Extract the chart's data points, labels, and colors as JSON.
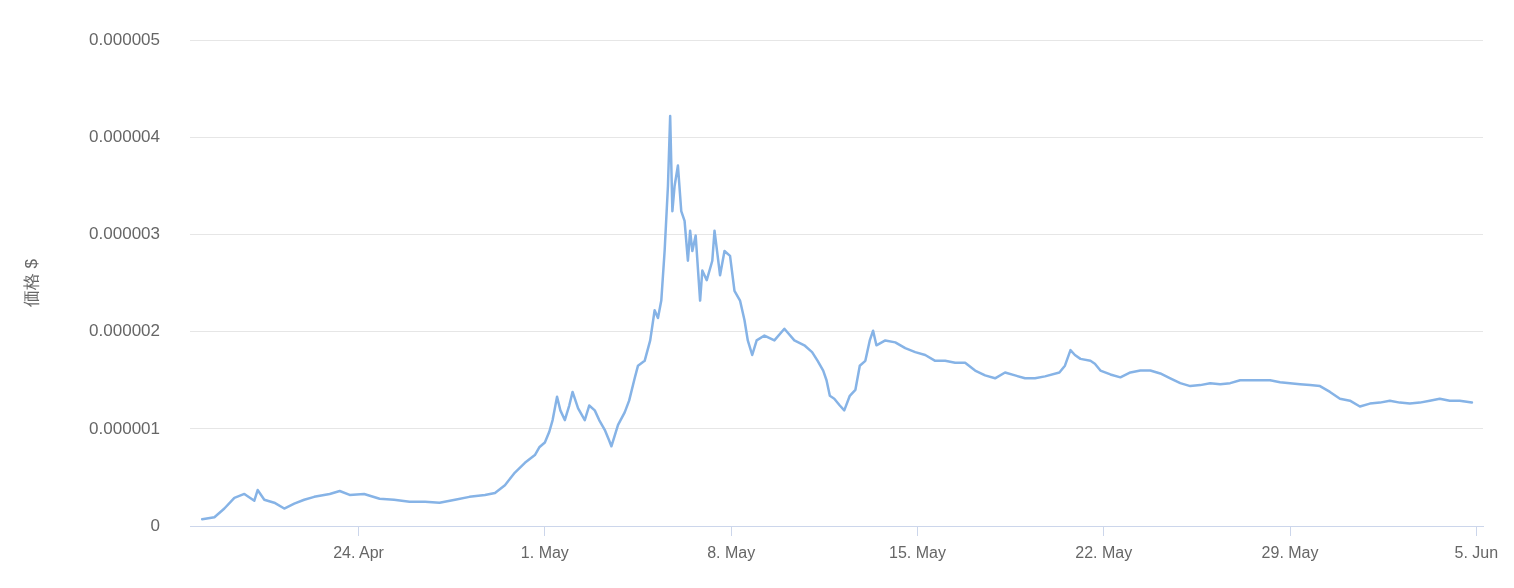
{
  "chart_data": {
    "type": "line",
    "ylabel": "価格 $",
    "legend": false,
    "grid": "y",
    "marker": "none",
    "line_style": "solid",
    "xlim": [
      "--04-17T16:00",
      "--06-05T06:00"
    ],
    "xticks": [
      {
        "value": "--04-24",
        "label": "24. Apr"
      },
      {
        "value": "--05-01",
        "label": "1. May"
      },
      {
        "value": "--05-08",
        "label": "8. May"
      },
      {
        "value": "--05-15",
        "label": "15. May"
      },
      {
        "value": "--05-22",
        "label": "22. May"
      },
      {
        "value": "--05-29",
        "label": "29. May"
      },
      {
        "value": "--06-05",
        "label": "5. Jun"
      }
    ],
    "ylim": [
      0,
      5e-06
    ],
    "yticks": [
      0,
      {
        "value": 1e-06,
        "label": "0.000001"
      },
      {
        "value": 2e-06,
        "label": "0.000002"
      },
      {
        "value": 3e-06,
        "label": "0.000003"
      },
      {
        "value": 4e-06,
        "label": "0.000004"
      },
      {
        "value": 5e-06,
        "label": "0.000005"
      }
    ],
    "series": [
      {
        "color": "#86b3e6",
        "x": [
          "--04-18T03:00",
          "--04-18T14:00",
          "--04-18T23:00",
          "--04-19T08:00",
          "--04-19T17:00",
          "--04-20T02:00",
          "--04-20T05:00",
          "--04-20T11:00",
          "--04-20T20:00",
          "--04-21T05:00",
          "--04-21T14:00",
          "--04-21T23:00",
          "--04-22T08:00",
          "--04-22T22:00",
          "--04-23T07:00",
          "--04-23T16:00",
          "--04-24T05:00",
          "--04-24T19:00",
          "--04-25T08:00",
          "--04-25T22:00",
          "--04-26T12:00",
          "--04-27T01:00",
          "--04-27T15:00",
          "--04-28T04:00",
          "--04-28T18:00",
          "--04-29T03:00",
          "--04-29T12:00",
          "--04-29T21:00",
          "--04-30T06:00",
          "--04-30T15:00",
          "--04-30T19:00",
          "--05-01T00:00",
          "--05-01T04:00",
          "--05-01T07:00",
          "--05-01T11:00",
          "--05-01T14:00",
          "--05-01T18:00",
          "--05-01T22:00",
          "--05-02T01:00",
          "--05-02T06:00",
          "--05-02T12:00",
          "--05-02T16:00",
          "--05-02T21:00",
          "--05-03T01:00",
          "--05-03T06:00",
          "--05-03T10:00",
          "--05-03T12:00",
          "--05-03T18:00",
          "--05-04T00:00",
          "--05-04T04:00",
          "--05-04T09:00",
          "--05-04T12:00",
          "--05-04T18:00",
          "--05-04T23:00",
          "--05-05T03:00",
          "--05-05T06:00",
          "--05-05T09:00",
          "--05-05T12:00",
          "--05-05T15:00",
          "--05-05T17:00",
          "--05-05T19:00",
          "--05-05T21:00",
          "--05-06T00:00",
          "--05-06T03:00",
          "--05-06T06:00",
          "--05-06T09:00",
          "--05-06T11:00",
          "--05-06T13:00",
          "--05-06T16:00",
          "--05-06T20:00",
          "--05-06T22:00",
          "--05-07T02:00",
          "--05-07T07:00",
          "--05-07T09:00",
          "--05-07T14:00",
          "--05-07T18:00",
          "--05-07T23:00",
          "--05-08T03:00",
          "--05-08T08:00",
          "--05-08T12:00",
          "--05-08T15:00",
          "--05-08T19:00",
          "--05-08T23:00",
          "--05-09T06:00",
          "--05-09T15:00",
          "--05-10T00:00",
          "--05-10T09:00",
          "--05-10T18:00",
          "--05-11T01:00",
          "--05-11T06:00",
          "--05-11T11:00",
          "--05-11T14:00",
          "--05-11T17:00",
          "--05-11T21:00",
          "--05-12T02:00",
          "--05-12T06:00",
          "--05-12T11:00",
          "--05-12T16:00",
          "--05-12T20:00",
          "--05-13T01:00",
          "--05-13T05:00",
          "--05-13T08:00",
          "--05-13T11:00",
          "--05-13T19:00",
          "--05-14T04:00",
          "--05-14T13:00",
          "--05-14T22:00",
          "--05-15T07:00",
          "--05-15T16:00",
          "--05-16T01:00",
          "--05-16T10:00",
          "--05-16T19:00",
          "--05-17T04:00",
          "--05-17T13:00",
          "--05-17T22:00",
          "--05-18T07:00",
          "--05-18T16:00",
          "--05-19T01:00",
          "--05-19T10:00",
          "--05-19T19:00",
          "--05-20T08:00",
          "--05-20T13:00",
          "--05-20T18:00",
          "--05-20T22:00",
          "--05-21T03:00",
          "--05-21T12:00",
          "--05-21T16:00",
          "--05-21T21:00",
          "--05-22T06:00",
          "--05-22T15:00",
          "--05-23T00:00",
          "--05-23T09:00",
          "--05-23T18:00",
          "--05-24T03:00",
          "--05-24T12:00",
          "--05-24T21:00",
          "--05-25T06:00",
          "--05-25T15:00",
          "--05-26T00:00",
          "--05-26T09:00",
          "--05-26T18:00",
          "--05-27T03:00",
          "--05-27T12:00",
          "--05-27T21:00",
          "--05-28T06:00",
          "--05-28T15:00",
          "--05-29T00:00",
          "--05-29T09:00",
          "--05-29T18:00",
          "--05-30T03:00",
          "--05-30T12:00",
          "--05-30T21:00",
          "--05-31T06:00",
          "--05-31T15:00",
          "--06-01T00:00",
          "--06-01T09:00",
          "--06-01T18:00",
          "--06-02T03:00",
          "--06-02T12:00",
          "--06-02T21:00",
          "--06-03T06:00",
          "--06-03T15:00",
          "--06-04T00:00",
          "--06-04T09:00",
          "--06-04T20:00"
        ],
        "values": [
          7e-08,
          9e-08,
          1.8e-07,
          2.9e-07,
          3.3e-07,
          2.6e-07,
          3.7e-07,
          2.7e-07,
          2.4e-07,
          1.8e-07,
          2.3e-07,
          2.7e-07,
          3e-07,
          3.3e-07,
          3.6e-07,
          3.2e-07,
          3.3e-07,
          2.8e-07,
          2.7e-07,
          2.5e-07,
          2.5e-07,
          2.4e-07,
          2.7e-07,
          3e-07,
          3.2e-07,
          3.4e-07,
          4.2e-07,
          5.5e-07,
          6.5e-07,
          7.3e-07,
          8.1e-07,
          8.6e-07,
          9.7e-07,
          1.09e-06,
          1.33e-06,
          1.19e-06,
          1.09e-06,
          1.24e-06,
          1.38e-06,
          1.21e-06,
          1.09e-06,
          1.24e-06,
          1.19e-06,
          1.09e-06,
          9.9e-07,
          8.8e-07,
          8.2e-07,
          1.04e-06,
          1.17e-06,
          1.29e-06,
          1.52e-06,
          1.65e-06,
          1.7e-06,
          1.91e-06,
          2.22e-06,
          2.14e-06,
          2.32e-06,
          2.83e-06,
          3.5e-06,
          4.22e-06,
          3.24e-06,
          3.5e-06,
          3.71e-06,
          3.24e-06,
          3.14e-06,
          2.73e-06,
          3.04e-06,
          2.83e-06,
          2.99e-06,
          2.32e-06,
          2.63e-06,
          2.53e-06,
          2.73e-06,
          3.04e-06,
          2.58e-06,
          2.83e-06,
          2.78e-06,
          2.42e-06,
          2.32e-06,
          2.12e-06,
          1.91e-06,
          1.76e-06,
          1.91e-06,
          1.96e-06,
          1.91e-06,
          2.03e-06,
          1.91e-06,
          1.86e-06,
          1.79e-06,
          1.7e-06,
          1.6e-06,
          1.5e-06,
          1.34e-06,
          1.31e-06,
          1.24e-06,
          1.19e-06,
          1.34e-06,
          1.4e-06,
          1.65e-06,
          1.7e-06,
          1.91e-06,
          2.01e-06,
          1.86e-06,
          1.91e-06,
          1.89e-06,
          1.83e-06,
          1.79e-06,
          1.76e-06,
          1.7e-06,
          1.7e-06,
          1.68e-06,
          1.68e-06,
          1.6e-06,
          1.55e-06,
          1.52e-06,
          1.58e-06,
          1.55e-06,
          1.52e-06,
          1.52e-06,
          1.54e-06,
          1.58e-06,
          1.65e-06,
          1.81e-06,
          1.76e-06,
          1.72e-06,
          1.7e-06,
          1.67e-06,
          1.6e-06,
          1.56e-06,
          1.53e-06,
          1.58e-06,
          1.6e-06,
          1.6e-06,
          1.57e-06,
          1.52e-06,
          1.47e-06,
          1.44e-06,
          1.45e-06,
          1.47e-06,
          1.46e-06,
          1.47e-06,
          1.5e-06,
          1.5e-06,
          1.5e-06,
          1.5e-06,
          1.48e-06,
          1.47e-06,
          1.46e-06,
          1.45e-06,
          1.44e-06,
          1.38e-06,
          1.31e-06,
          1.29e-06,
          1.23e-06,
          1.26e-06,
          1.27e-06,
          1.29e-06,
          1.27e-06,
          1.26e-06,
          1.27e-06,
          1.29e-06,
          1.31e-06,
          1.29e-06,
          1.29e-06,
          1.27e-06
        ]
      }
    ]
  }
}
